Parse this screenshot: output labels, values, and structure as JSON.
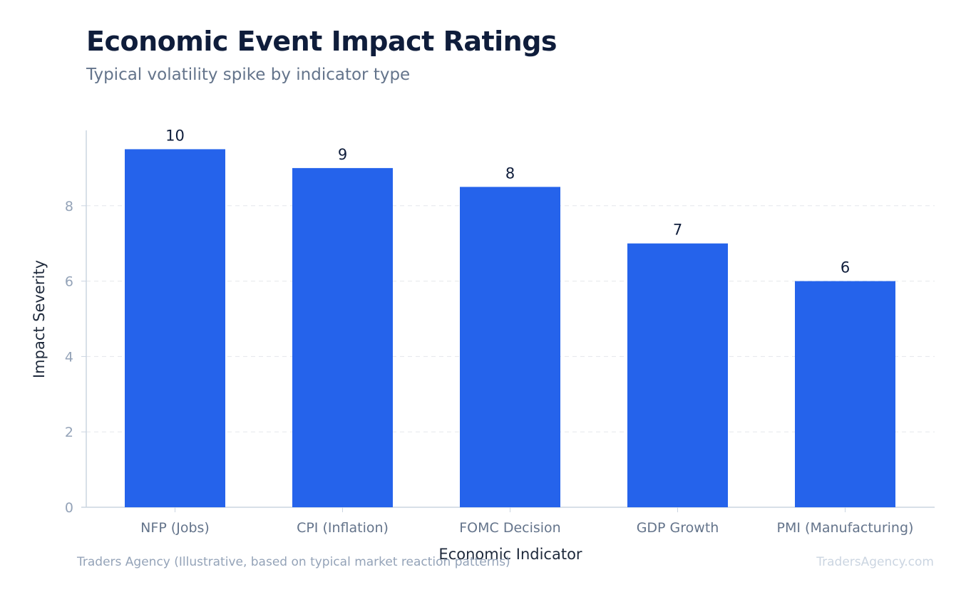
{
  "header": {
    "title": "Economic Event Impact Ratings",
    "subtitle": "Typical volatility spike by indicator type"
  },
  "footer": {
    "source": "Traders Agency (Illustrative, based on typical market reaction patterns)",
    "brand": "TradersAgency.com"
  },
  "colors": {
    "bar": "#2563eb",
    "grid": "#e5e7eb",
    "axis": "#cbd5e1",
    "tick_label": "#94a3b8",
    "category_label": "#64748b",
    "axis_title": "#1e293b",
    "value_label": "#0f1d3b"
  },
  "chart_data": {
    "type": "bar",
    "categories": [
      "NFP (Jobs)",
      "CPI (Inflation)",
      "FOMC Decision",
      "GDP Growth",
      "PMI (Manufacturing)"
    ],
    "values": [
      9.5,
      9,
      8.5,
      7,
      6
    ],
    "value_labels": [
      "10",
      "9",
      "8",
      "7",
      "6"
    ],
    "xlabel": "Economic Indicator",
    "ylabel": "Impact Severity",
    "yticks": [
      0,
      2,
      4,
      6,
      8
    ],
    "ylim": [
      0,
      10
    ],
    "grid": true,
    "legend": "none"
  }
}
